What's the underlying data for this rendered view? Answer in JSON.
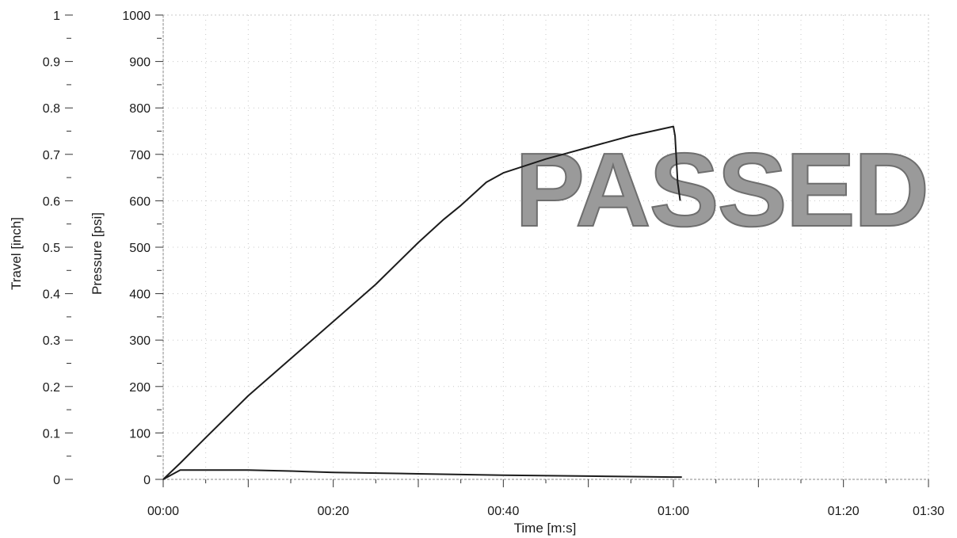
{
  "chart_data": {
    "type": "line",
    "stamp": "PASSED",
    "xlabel": "Time [m:s]",
    "ylabel_left": "Travel [inch]",
    "ylabel_right": "Pressure [psi]",
    "x_ticks": [
      "00:00",
      "00:20",
      "00:40",
      "01:00",
      "01:20",
      "01:30"
    ],
    "x_tick_values": [
      0,
      20,
      40,
      60,
      80,
      90
    ],
    "xlim": [
      0,
      90
    ],
    "travel_axis": {
      "ylim": [
        0,
        1
      ],
      "ticks": [
        "0",
        "0.1",
        "0.2",
        "0.3",
        "0.4",
        "0.5",
        "0.6",
        "0.7",
        "0.8",
        "0.9",
        "1"
      ]
    },
    "pressure_axis": {
      "ylim": [
        0,
        1000
      ],
      "ticks": [
        "0",
        "100",
        "200",
        "300",
        "400",
        "500",
        "600",
        "700",
        "800",
        "900",
        "1000"
      ]
    },
    "grid": true,
    "series": [
      {
        "axis": "pressure",
        "x": [
          0,
          2,
          5,
          10,
          15,
          20,
          25,
          30,
          33,
          35,
          38,
          40,
          45,
          50,
          55,
          60,
          60.2,
          60.5,
          60.8
        ],
        "y": [
          0,
          35,
          90,
          180,
          260,
          340,
          420,
          510,
          560,
          590,
          640,
          660,
          690,
          715,
          740,
          760,
          740,
          640,
          600
        ]
      },
      {
        "axis": "travel",
        "x": [
          0,
          1,
          2,
          4,
          6,
          8,
          10,
          15,
          20,
          30,
          40,
          50,
          55,
          60,
          61
        ],
        "y": [
          0,
          0.01,
          0.02,
          0.02,
          0.02,
          0.02,
          0.02,
          0.018,
          0.015,
          0.012,
          0.009,
          0.007,
          0.006,
          0.005,
          0.005
        ]
      }
    ],
    "colors": {
      "line": "#1c1c1c",
      "grid": "#c8c8c8",
      "axis": "#8a8a8a",
      "stamp": "#9a9a9a"
    }
  }
}
